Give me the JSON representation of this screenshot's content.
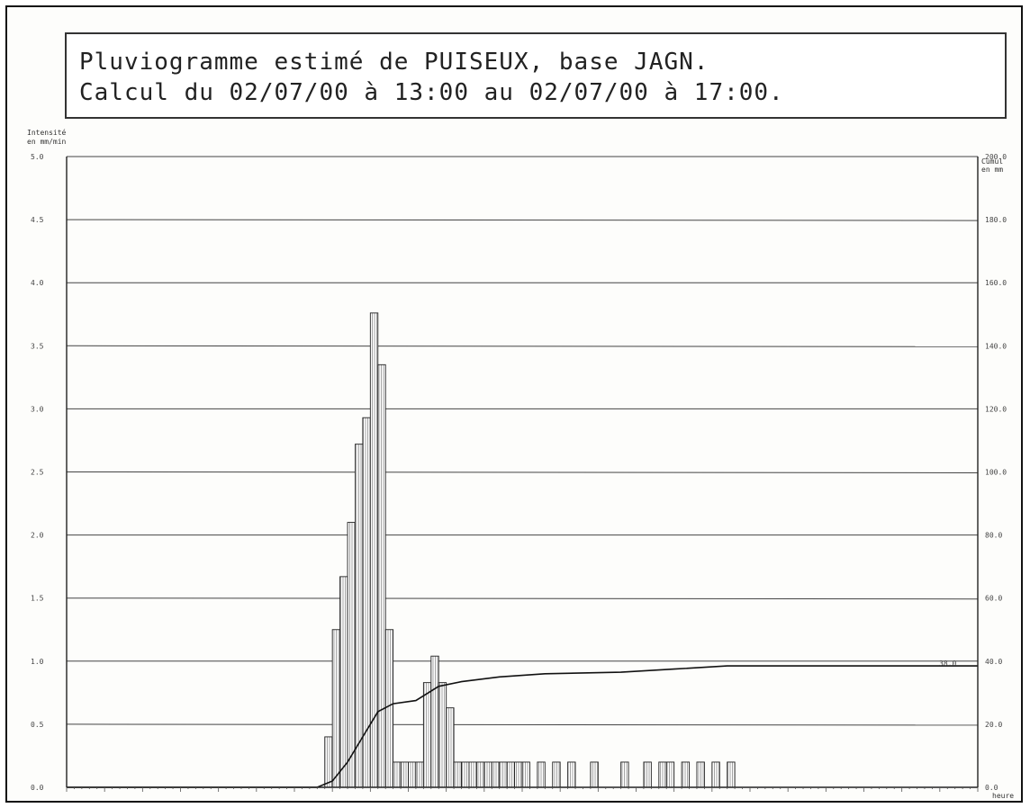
{
  "title": {
    "line1": "Pluviogramme estimé de PUISEUX, base JAGN.",
    "line2": "Calcul du 02/07/00 à 13:00 au 02/07/00 à 17:00."
  },
  "chart_data": {
    "type": "bar",
    "left_axis": {
      "label_line1": "Intensité",
      "label_line2": "en mm/min",
      "ticks": [
        "0.0",
        "0.5",
        "1.0",
        "1.5",
        "2.0",
        "2.5",
        "3.0",
        "3.5",
        "4.0",
        "4.5",
        "5.0"
      ],
      "ylim": [
        0,
        5
      ]
    },
    "right_axis": {
      "label_line1": "Cumul",
      "label_line2": "en mm",
      "ticks": [
        "0.0",
        "20.0",
        "40.0",
        "60.0",
        "80.0",
        "100.0",
        "120.0",
        "140.0",
        "160.0",
        "180.0",
        "200.0"
      ],
      "ylim": [
        0,
        200
      ]
    },
    "x_axis": {
      "label": "heure",
      "xlim": [
        0,
        240
      ]
    },
    "grid": true,
    "series": [
      {
        "name": "Intensité",
        "type": "bar",
        "bar_width_min": 2,
        "points": [
          {
            "t": 68,
            "v": 0.4
          },
          {
            "t": 70,
            "v": 1.25
          },
          {
            "t": 72,
            "v": 1.67
          },
          {
            "t": 74,
            "v": 2.1
          },
          {
            "t": 76,
            "v": 2.72
          },
          {
            "t": 78,
            "v": 2.93
          },
          {
            "t": 80,
            "v": 3.76
          },
          {
            "t": 82,
            "v": 3.35
          },
          {
            "t": 84,
            "v": 1.25
          },
          {
            "t": 86,
            "v": 0.2
          },
          {
            "t": 88,
            "v": 0.2
          },
          {
            "t": 90,
            "v": 0.2
          },
          {
            "t": 92,
            "v": 0.2
          },
          {
            "t": 94,
            "v": 0.83
          },
          {
            "t": 96,
            "v": 1.04
          },
          {
            "t": 98,
            "v": 0.83
          },
          {
            "t": 100,
            "v": 0.63
          },
          {
            "t": 102,
            "v": 0.2
          },
          {
            "t": 104,
            "v": 0.2
          },
          {
            "t": 106,
            "v": 0.2
          },
          {
            "t": 108,
            "v": 0.2
          },
          {
            "t": 110,
            "v": 0.2
          },
          {
            "t": 112,
            "v": 0.2
          },
          {
            "t": 114,
            "v": 0.2
          },
          {
            "t": 116,
            "v": 0.2
          },
          {
            "t": 118,
            "v": 0.2
          },
          {
            "t": 120,
            "v": 0.2
          },
          {
            "t": 124,
            "v": 0.2
          },
          {
            "t": 128,
            "v": 0.2
          },
          {
            "t": 132,
            "v": 0.2
          },
          {
            "t": 138,
            "v": 0.2
          },
          {
            "t": 146,
            "v": 0.2
          },
          {
            "t": 152,
            "v": 0.2
          },
          {
            "t": 156,
            "v": 0.2
          },
          {
            "t": 158,
            "v": 0.2
          },
          {
            "t": 162,
            "v": 0.2
          },
          {
            "t": 166,
            "v": 0.2
          },
          {
            "t": 170,
            "v": 0.2
          },
          {
            "t": 174,
            "v": 0.2
          }
        ]
      },
      {
        "name": "Cumul",
        "type": "line",
        "axis": "right",
        "points": [
          {
            "t": 0,
            "v": 0
          },
          {
            "t": 66,
            "v": 0
          },
          {
            "t": 70,
            "v": 2
          },
          {
            "t": 74,
            "v": 8
          },
          {
            "t": 78,
            "v": 16
          },
          {
            "t": 82,
            "v": 24
          },
          {
            "t": 86,
            "v": 26.5
          },
          {
            "t": 92,
            "v": 27.5
          },
          {
            "t": 98,
            "v": 32
          },
          {
            "t": 104,
            "v": 33.5
          },
          {
            "t": 114,
            "v": 35
          },
          {
            "t": 126,
            "v": 36
          },
          {
            "t": 146,
            "v": 36.5
          },
          {
            "t": 160,
            "v": 37.5
          },
          {
            "t": 174,
            "v": 38.5
          },
          {
            "t": 200,
            "v": 38.5
          },
          {
            "t": 240,
            "v": 38.5
          }
        ]
      }
    ],
    "annotations": [
      "38.0"
    ]
  }
}
